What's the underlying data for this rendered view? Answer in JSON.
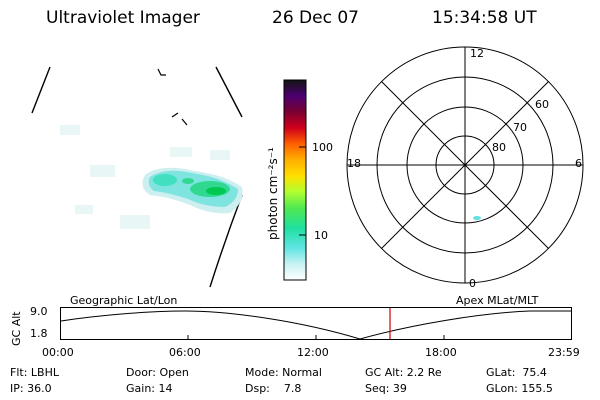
{
  "header": {
    "title": "Ultraviolet Imager",
    "date": "26 Dec 07",
    "time": "15:34:58 UT"
  },
  "colorbar": {
    "label": "photon cm⁻²s⁻¹",
    "ticks": [
      "100",
      "10"
    ],
    "colors": [
      "#141414",
      "#2a0050",
      "#4b0070",
      "#7a0030",
      "#b00018",
      "#e0001c",
      "#ff5a00",
      "#ff9a00",
      "#ffd000",
      "#e8ff30",
      "#9aff30",
      "#50e850",
      "#00e880",
      "#40e0d0",
      "#a0f0f0",
      "#e6f8f8",
      "#ffffff"
    ]
  },
  "polar_plot": {
    "clock_labels": [
      "12",
      "18",
      "6",
      "0"
    ],
    "lat_labels": [
      "60",
      "70",
      "80"
    ]
  },
  "timeline": {
    "left_label": "Geographic Lat/Lon",
    "right_label": "Apex MLat/MLT",
    "y_axis_label": "GC Alt",
    "y_ticks": [
      "9.0",
      "1.8"
    ],
    "x_ticks": [
      "00:00",
      "06:00",
      "12:00",
      "18:00",
      "23:59"
    ]
  },
  "status": {
    "filter": "Flt: LBHL",
    "ip": "IP: 36.0",
    "door": "Door: Open",
    "gain": "Gain: 14",
    "mode": "Mode: Normal",
    "dsp": "Dsp:    7.8",
    "gc_alt": "GC Alt: 2.2 Re",
    "seq": "Seq: 39",
    "glat": "GLat:  75.4",
    "glon": "GLon: 155.5"
  },
  "accent_colors": {
    "cursor": "#cc0000",
    "aurora_core": "#00d060",
    "aurora_edge": "#60e0e0"
  }
}
